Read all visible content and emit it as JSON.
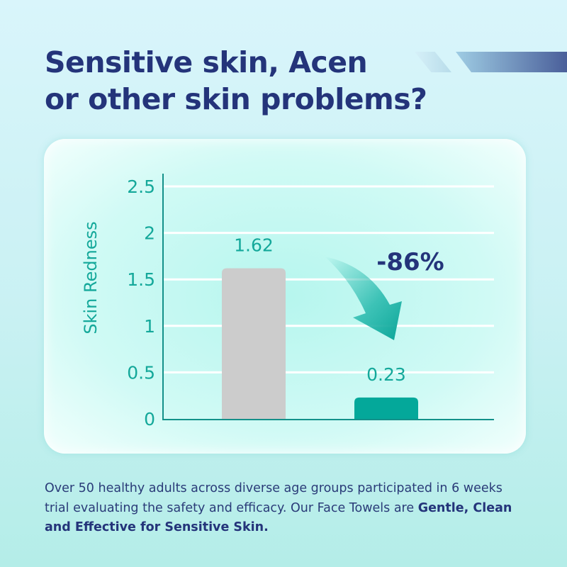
{
  "headline": {
    "line1": "Sensitive skin, Acen",
    "line2": "or other skin problems?"
  },
  "chart_data": {
    "type": "bar",
    "categories": [
      "",
      ""
    ],
    "values": [
      1.62,
      0.23
    ],
    "data_labels": [
      "1.62",
      "0.23"
    ],
    "bar_colors": [
      "#cccccc",
      "#04a89a"
    ],
    "ylabel": "Skin Redness",
    "xlabel": "",
    "ylim": [
      0,
      2.5
    ],
    "yticks": [
      "0",
      "0.5",
      "1",
      "1.5",
      "2",
      "2.5"
    ],
    "grid": true,
    "annotation": "-86%"
  },
  "description": {
    "text": "Over 50 healthy adults across diverse age groups participated in 6 weeks trial evaluating the safety and efficacy. Our Face Towels are ",
    "bold": "Gentle, Clean and Effective for Sensitive Skin."
  },
  "colors": {
    "title": "#24347a",
    "accent": "#14a89a"
  }
}
